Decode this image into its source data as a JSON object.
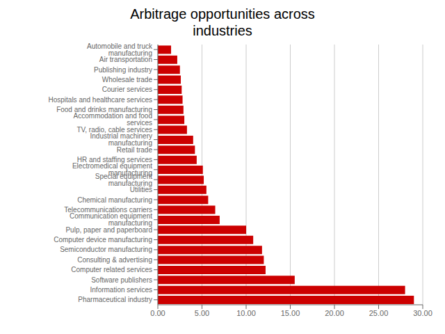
{
  "chart_data": {
    "type": "bar",
    "title": "Arbitrage opportunities across\nindustries",
    "orientation": "horizontal",
    "color": "#cc0000",
    "categories": [
      "Automobile and truck manufacturing",
      "Air transportation",
      "Publishing industry",
      "Wholesale trade",
      "Courier services",
      "Hospitals and healthcare services",
      "Food and drinks manufacturing",
      "Accommodation and food services",
      "TV, radio, cable services",
      "Industrial machinery manufacturing",
      "Retail trade",
      "HR and staffing services",
      "Electromedical equipment manufacturing",
      "Special equipment manufacturing",
      "Utilities",
      "Chemical manufacturing",
      "Telecommunications carriers",
      "Communication equipment manufacturing",
      "Pulp, paper and paperboard",
      "Computer device manufacturing",
      "Semiconductor manufacturing",
      "Consulting & advertising",
      "Computer related services",
      "Software publishers",
      "Information services",
      "Pharmaceutical industry"
    ],
    "values": [
      1.5,
      2.2,
      2.5,
      2.6,
      2.7,
      2.8,
      2.9,
      3.0,
      3.3,
      4.0,
      4.2,
      4.4,
      5.1,
      5.2,
      5.5,
      5.7,
      6.5,
      7.0,
      10.0,
      10.8,
      11.8,
      12.0,
      12.2,
      15.5,
      28.0,
      29.0
    ],
    "xlim": [
      0,
      30
    ],
    "xticks": [
      {
        "value": 0,
        "label": "0.00"
      },
      {
        "value": 5,
        "label": "5.00"
      },
      {
        "value": 10,
        "label": "10.00"
      },
      {
        "value": 15,
        "label": "15.00"
      },
      {
        "value": 20,
        "label": "20.00"
      },
      {
        "value": 25,
        "label": "25.00"
      },
      {
        "value": 30,
        "label": "30.00"
      }
    ],
    "grid": true
  }
}
